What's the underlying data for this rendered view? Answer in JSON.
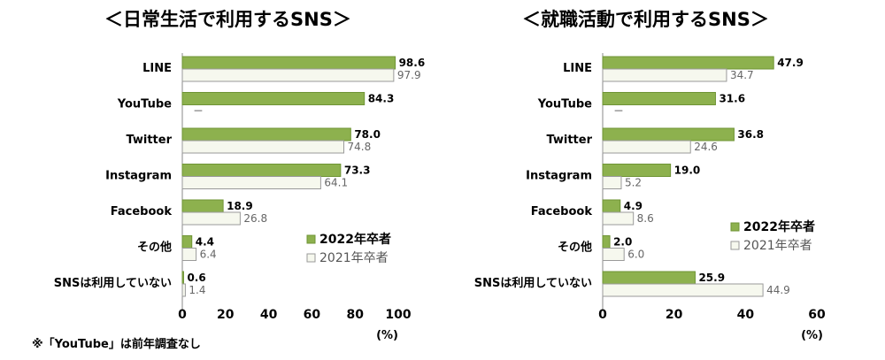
{
  "chart_data": [
    {
      "type": "bar",
      "title": "＜日常生活で利用するSNS＞",
      "categories": [
        "LINE",
        "YouTube",
        "Twitter",
        "Instagram",
        "Facebook",
        "その他",
        "SNSは利用していない"
      ],
      "series": [
        {
          "name": "2022年卒者",
          "values": [
            98.6,
            84.3,
            78.0,
            73.3,
            18.9,
            4.4,
            0.6
          ],
          "labels": [
            "98.6",
            "84.3",
            "78.0",
            "73.3",
            "18.9",
            "4.4",
            "0.6"
          ]
        },
        {
          "name": "2021年卒者",
          "values": [
            97.9,
            null,
            74.8,
            64.1,
            26.8,
            6.4,
            1.4
          ],
          "labels": [
            "97.9",
            "－",
            "74.8",
            "64.1",
            "26.8",
            "6.4",
            "1.4"
          ]
        }
      ],
      "xlim": [
        0,
        100
      ],
      "xticks": [
        "0",
        "20",
        "40",
        "60",
        "80",
        "100"
      ],
      "unit": "(%)",
      "legend": "bottom-right"
    },
    {
      "type": "bar",
      "title": "＜就職活動で利用するSNS＞",
      "categories": [
        "LINE",
        "YouTube",
        "Twitter",
        "Instagram",
        "Facebook",
        "その他",
        "SNSは利用していない"
      ],
      "series": [
        {
          "name": "2022年卒者",
          "values": [
            47.9,
            31.6,
            36.8,
            19.0,
            4.9,
            2.0,
            25.9
          ],
          "labels": [
            "47.9",
            "31.6",
            "36.8",
            "19.0",
            "4.9",
            "2.0",
            "25.9"
          ]
        },
        {
          "name": "2021年卒者",
          "values": [
            34.7,
            null,
            24.6,
            5.2,
            8.6,
            6.0,
            44.9
          ],
          "labels": [
            "34.7",
            "－",
            "24.6",
            "5.2",
            "8.6",
            "6.0",
            "44.9"
          ]
        }
      ],
      "xlim": [
        0,
        60
      ],
      "xticks": [
        "0",
        "20",
        "40",
        "60"
      ],
      "unit": "(%)",
      "legend": "right"
    }
  ],
  "footnote": "※「YouTube」は前年調査なし",
  "colors": {
    "current": "#8db14e",
    "current_stroke": "#6f9436",
    "previous": "#f6f8ee",
    "previous_stroke": "#9a9a9a",
    "axis": "#888888"
  }
}
